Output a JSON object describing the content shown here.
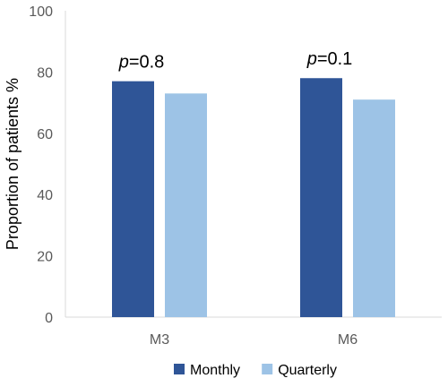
{
  "chart_data": {
    "type": "bar",
    "categories": [
      "M3",
      "M6"
    ],
    "series": [
      {
        "name": "Monthly",
        "values": [
          77,
          78
        ],
        "color": "#2f5597"
      },
      {
        "name": "Quarterly",
        "values": [
          73,
          71
        ],
        "color": "#9dc3e6"
      }
    ],
    "title": "",
    "xlabel": "",
    "ylabel": "Proportion of patients %",
    "ylim": [
      0,
      100
    ],
    "yticks": [
      "0",
      "20",
      "40",
      "60",
      "80",
      "100"
    ],
    "grid": false,
    "legend_position": "bottom",
    "annotations": [
      {
        "category": "M3",
        "p_symbol": "p",
        "value_text": "=0.8"
      },
      {
        "category": "M6",
        "p_symbol": "p",
        "value_text": "=0.1"
      }
    ]
  }
}
